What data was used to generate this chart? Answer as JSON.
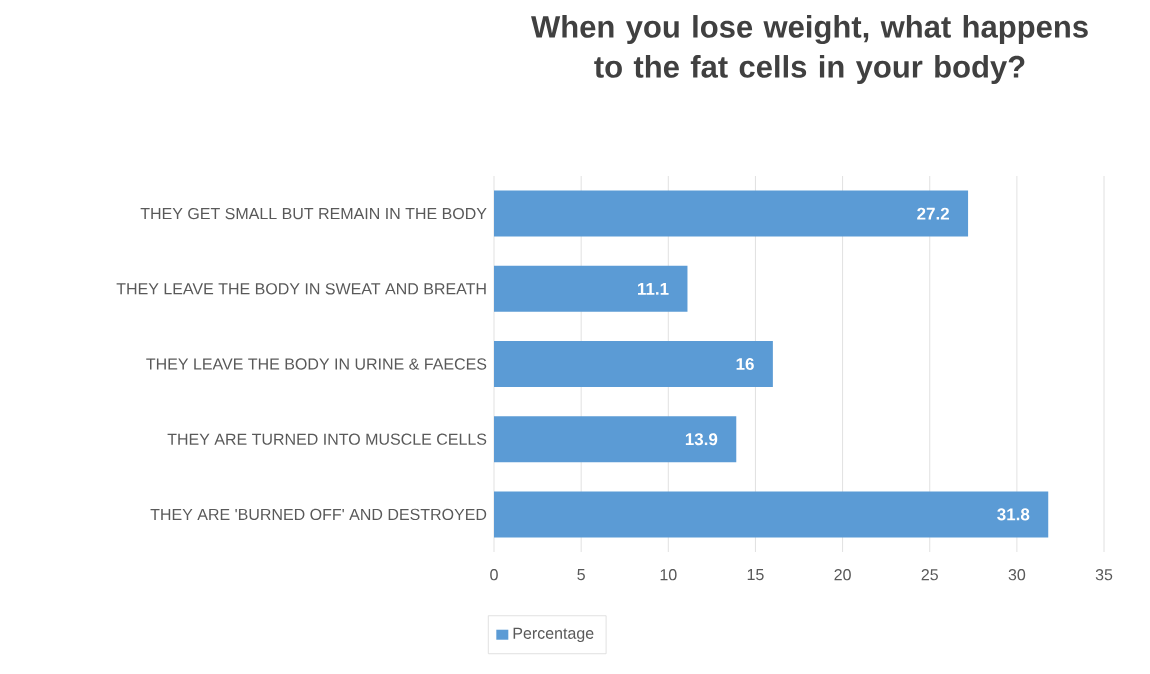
{
  "chart_data": {
    "type": "bar",
    "orientation": "horizontal",
    "title": "When you lose weight, what happens to the fat cells in your body?",
    "categories": [
      "THEY GET SMALL BUT REMAIN IN THE BODY",
      "THEY LEAVE THE BODY IN SWEAT AND BREATH",
      "THEY LEAVE THE BODY IN URINE & FAECES",
      "THEY ARE TURNED INTO MUSCLE CELLS",
      "THEY ARE 'BURNED OFF' AND DESTROYED"
    ],
    "series": [
      {
        "name": "Percentage",
        "color": "#5b9bd5",
        "values": [
          27.2,
          11.1,
          16,
          13.9,
          31.8
        ]
      }
    ],
    "xlim": [
      0,
      35
    ],
    "xticks": [
      0,
      5,
      10,
      15,
      20,
      25,
      30,
      35
    ],
    "grid": "x",
    "legend": "bottom",
    "data_labels": true
  }
}
